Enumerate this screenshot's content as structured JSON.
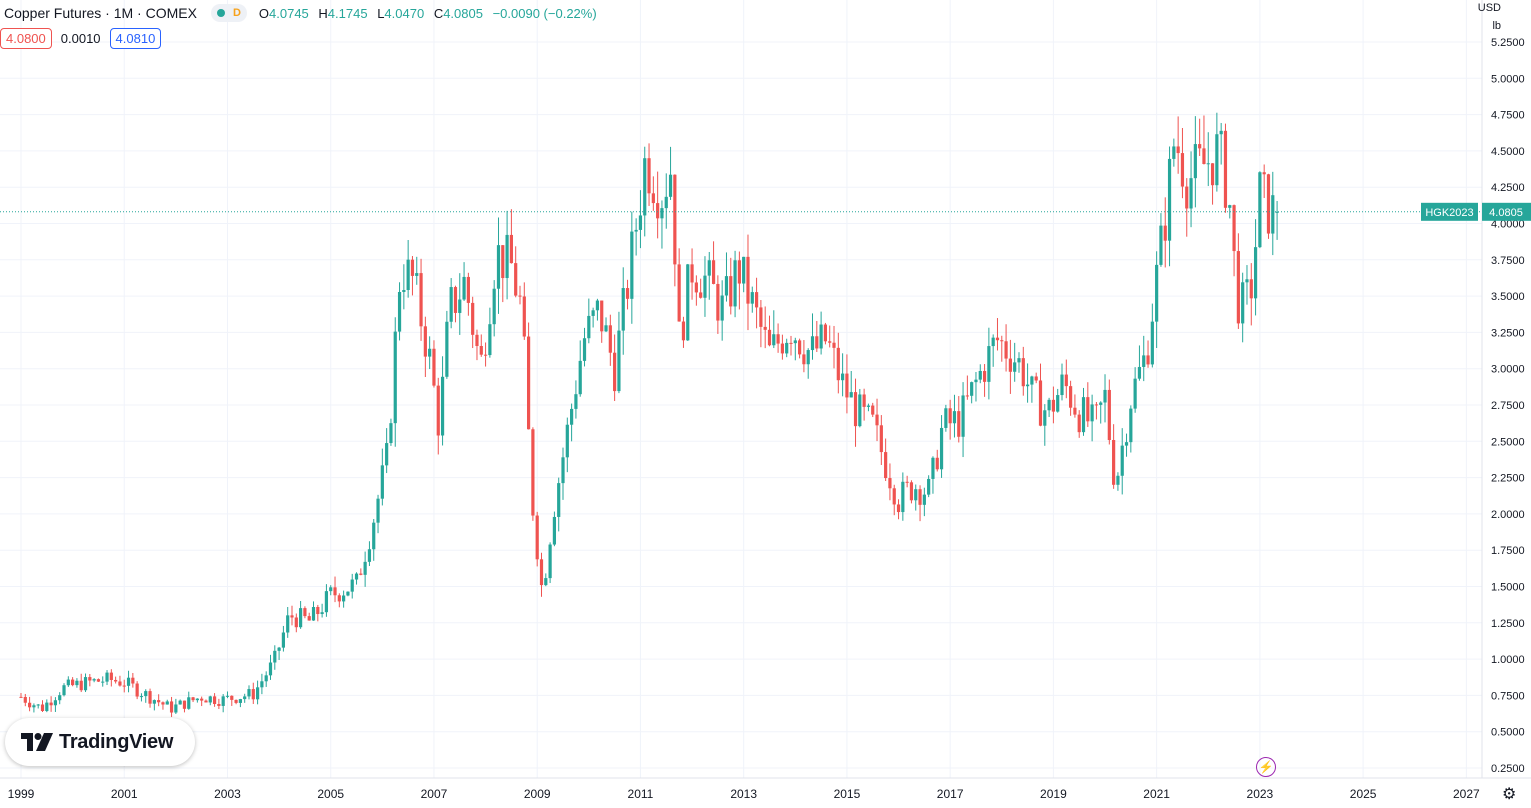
{
  "legend": {
    "title": "Copper Futures · 1M · COMEX",
    "interval_flag": "D",
    "open_label": "O",
    "open": "4.0745",
    "high_label": "H",
    "high": "4.1745",
    "low_label": "L",
    "low": "4.0470",
    "close_label": "C",
    "close": "4.0805",
    "change": "−0.0090 (−0.22%)"
  },
  "quote": {
    "bid": "4.0800",
    "spread": "0.0010",
    "ask": "4.0810"
  },
  "axis": {
    "currency": "USD",
    "unit": "lb"
  },
  "brand": {
    "name": "TradingView"
  },
  "colors": {
    "up": "#26a69a",
    "down": "#ef5350",
    "grid": "#f0f3fa",
    "last_line": "#26a69a"
  },
  "chart_data": {
    "type": "candlestick",
    "title": "Copper Futures · 1M · COMEX",
    "symbol": "HGK2023",
    "last_price": 4.0805,
    "y_unit": "USD / lb",
    "ylim": [
      0.2,
      5.35
    ],
    "xlim": [
      1998.9,
      2028.1
    ],
    "y_ticks": [
      "0.2500",
      "0.5000",
      "0.7500",
      "1.0000",
      "1.2500",
      "1.5000",
      "1.7500",
      "2.0000",
      "2.2500",
      "2.5000",
      "2.7500",
      "3.0000",
      "3.2500",
      "3.5000",
      "3.7500",
      "4.0000",
      "4.2500",
      "4.5000",
      "4.7500",
      "5.0000",
      "5.2500"
    ],
    "x_ticks": [
      "1999",
      "2001",
      "2003",
      "2005",
      "2007",
      "2009",
      "2011",
      "2013",
      "2015",
      "2017",
      "2019",
      "2021",
      "2023",
      "2025",
      "2027"
    ],
    "close_path": [
      [
        1999.0,
        0.74
      ],
      [
        1999.4,
        0.66
      ],
      [
        1999.8,
        0.8
      ],
      [
        2000.3,
        0.84
      ],
      [
        2000.7,
        0.86
      ],
      [
        2001.0,
        0.84
      ],
      [
        2001.4,
        0.76
      ],
      [
        2001.9,
        0.66
      ],
      [
        2002.5,
        0.74
      ],
      [
        2002.9,
        0.72
      ],
      [
        2003.5,
        0.76
      ],
      [
        2003.9,
        0.98
      ],
      [
        2004.2,
        1.3
      ],
      [
        2004.6,
        1.26
      ],
      [
        2005.0,
        1.44
      ],
      [
        2005.5,
        1.52
      ],
      [
        2005.8,
        1.92
      ],
      [
        2006.1,
        2.4
      ],
      [
        2006.35,
        3.7
      ],
      [
        2006.6,
        3.6
      ],
      [
        2006.9,
        3.1
      ],
      [
        2007.1,
        2.6
      ],
      [
        2007.3,
        3.4
      ],
      [
        2007.6,
        3.6
      ],
      [
        2007.9,
        3.0
      ],
      [
        2008.2,
        3.8
      ],
      [
        2008.5,
        3.7
      ],
      [
        2008.7,
        3.4
      ],
      [
        2008.9,
        2.1
      ],
      [
        2009.1,
        1.45
      ],
      [
        2009.3,
        2.0
      ],
      [
        2009.6,
        2.6
      ],
      [
        2009.9,
        3.2
      ],
      [
        2010.2,
        3.4
      ],
      [
        2010.5,
        3.0
      ],
      [
        2010.8,
        3.7
      ],
      [
        2011.1,
        4.45
      ],
      [
        2011.4,
        4.2
      ],
      [
        2011.6,
        4.4
      ],
      [
        2011.75,
        3.2
      ],
      [
        2012.0,
        3.7
      ],
      [
        2012.3,
        3.6
      ],
      [
        2012.6,
        3.4
      ],
      [
        2012.9,
        3.7
      ],
      [
        2013.2,
        3.4
      ],
      [
        2013.5,
        3.1
      ],
      [
        2013.9,
        3.3
      ],
      [
        2014.3,
        3.1
      ],
      [
        2014.6,
        3.2
      ],
      [
        2014.9,
        2.9
      ],
      [
        2015.2,
        2.7
      ],
      [
        2015.5,
        2.6
      ],
      [
        2015.8,
        2.3
      ],
      [
        2016.0,
        2.1
      ],
      [
        2016.3,
        2.2
      ],
      [
        2016.6,
        2.15
      ],
      [
        2016.85,
        2.6
      ],
      [
        2017.2,
        2.65
      ],
      [
        2017.5,
        2.9
      ],
      [
        2017.9,
        3.2
      ],
      [
        2018.2,
        3.1
      ],
      [
        2018.4,
        3.0
      ],
      [
        2018.6,
        2.8
      ],
      [
        2018.9,
        2.7
      ],
      [
        2019.2,
        2.9
      ],
      [
        2019.5,
        2.7
      ],
      [
        2019.8,
        2.6
      ],
      [
        2020.0,
        2.8
      ],
      [
        2020.2,
        2.2
      ],
      [
        2020.5,
        2.8
      ],
      [
        2020.8,
        3.1
      ],
      [
        2020.95,
        3.5
      ],
      [
        2021.15,
        4.0
      ],
      [
        2021.35,
        4.6
      ],
      [
        2021.6,
        4.3
      ],
      [
        2021.9,
        4.4
      ],
      [
        2022.2,
        4.5
      ],
      [
        2022.4,
        4.2
      ],
      [
        2022.55,
        3.5
      ],
      [
        2022.7,
        3.4
      ],
      [
        2022.85,
        3.6
      ],
      [
        2023.0,
        4.2
      ],
      [
        2023.2,
        4.08
      ]
    ],
    "candle_count": 293,
    "frequency": "monthly"
  }
}
